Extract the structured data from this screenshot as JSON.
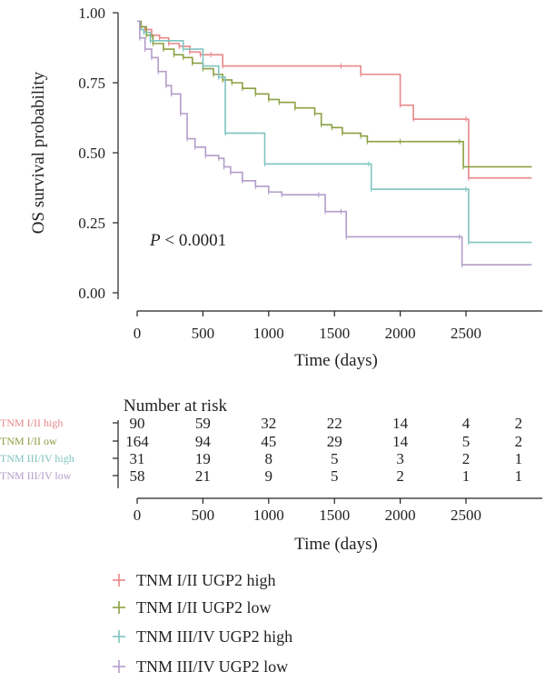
{
  "chart_data": {
    "type": "line",
    "subtype": "kaplan-meier",
    "ylabel": "OS survival probability",
    "xlabel": "Time (days)",
    "xlim": [
      -100,
      3000
    ],
    "ylim": [
      0,
      1
    ],
    "x_ticks": [
      0,
      500,
      1000,
      1500,
      2000,
      2500
    ],
    "x_tick_labels": [
      "0",
      "500",
      "1000",
      "1500",
      "2000",
      "2500"
    ],
    "y_ticks": [
      0,
      0.25,
      0.5,
      0.75,
      1
    ],
    "y_tick_labels": [
      "0.00",
      "0.25",
      "0.50",
      "0.75",
      "1.00"
    ],
    "annotation_p": "P",
    "annotation_rest": " < 0.0001",
    "legend_position": "bottom",
    "series": [
      {
        "name": "TNM I/II UGP2 high",
        "color": "#e8878a",
        "x": [
          0,
          20,
          60,
          110,
          170,
          240,
          320,
          400,
          480,
          560,
          650,
          1550,
          1700,
          2000,
          2100,
          2500,
          2520,
          3000
        ],
        "y": [
          0.97,
          0.95,
          0.94,
          0.92,
          0.91,
          0.89,
          0.88,
          0.86,
          0.85,
          0.85,
          0.81,
          0.81,
          0.78,
          0.67,
          0.62,
          0.62,
          0.41,
          0.41
        ]
      },
      {
        "name": "TNM I/II UGP2 low",
        "color": "#8aa042",
        "x": [
          0,
          30,
          70,
          120,
          200,
          280,
          350,
          420,
          500,
          580,
          650,
          720,
          800,
          900,
          1000,
          1080,
          1200,
          1350,
          1400,
          1480,
          1560,
          1700,
          1750,
          2000,
          2450,
          2480,
          3000
        ],
        "y": [
          0.97,
          0.95,
          0.92,
          0.89,
          0.87,
          0.85,
          0.84,
          0.82,
          0.8,
          0.78,
          0.76,
          0.75,
          0.73,
          0.71,
          0.69,
          0.68,
          0.66,
          0.64,
          0.6,
          0.59,
          0.57,
          0.56,
          0.54,
          0.54,
          0.54,
          0.45,
          0.45
        ]
      },
      {
        "name": "TNM III/IV UGP2 high",
        "color": "#7fc4c0",
        "x": [
          0,
          20,
          50,
          100,
          350,
          500,
          620,
          670,
          970,
          1760,
          1780,
          2500,
          2520,
          3000
        ],
        "y": [
          0.97,
          0.94,
          0.93,
          0.9,
          0.87,
          0.81,
          0.77,
          0.57,
          0.46,
          0.46,
          0.37,
          0.37,
          0.18,
          0.18
        ]
      },
      {
        "name": "TNM III/IV UGP2 low",
        "color": "#b39cc9",
        "x": [
          0,
          20,
          60,
          110,
          160,
          220,
          260,
          330,
          380,
          440,
          520,
          620,
          660,
          710,
          800,
          900,
          1000,
          1100,
          1380,
          1430,
          1550,
          1590,
          2450,
          2470,
          3000
        ],
        "y": [
          0.97,
          0.91,
          0.87,
          0.84,
          0.79,
          0.74,
          0.71,
          0.64,
          0.55,
          0.52,
          0.49,
          0.48,
          0.45,
          0.43,
          0.4,
          0.38,
          0.36,
          0.35,
          0.35,
          0.29,
          0.29,
          0.2,
          0.2,
          0.1,
          0.1
        ]
      }
    ],
    "risk_table": {
      "title": "Number at risk",
      "xlabel": "Time (days)",
      "columns": [
        0,
        500,
        1000,
        1500,
        2000,
        2500,
        2900
      ],
      "x_tick_labels": [
        "0",
        "500",
        "1000",
        "1500",
        "2000",
        "2500"
      ],
      "rows": [
        {
          "label": "TNM I/II high",
          "color": "#e8878a",
          "values": [
            "90",
            "59",
            "32",
            "22",
            "14",
            "4",
            "2"
          ]
        },
        {
          "label": "TNM I/II ow",
          "color": "#8aa042",
          "values": [
            "164",
            "94",
            "45",
            "29",
            "14",
            "5",
            "2"
          ]
        },
        {
          "label": "TNM III/IV high",
          "color": "#7fc4c0",
          "values": [
            "31",
            "19",
            "8",
            "5",
            "3",
            "2",
            "1"
          ]
        },
        {
          "label": "TNM III/IV low",
          "color": "#b39cc9",
          "values": [
            "58",
            "21",
            "9",
            "5",
            "2",
            "1",
            "1"
          ]
        }
      ]
    }
  }
}
